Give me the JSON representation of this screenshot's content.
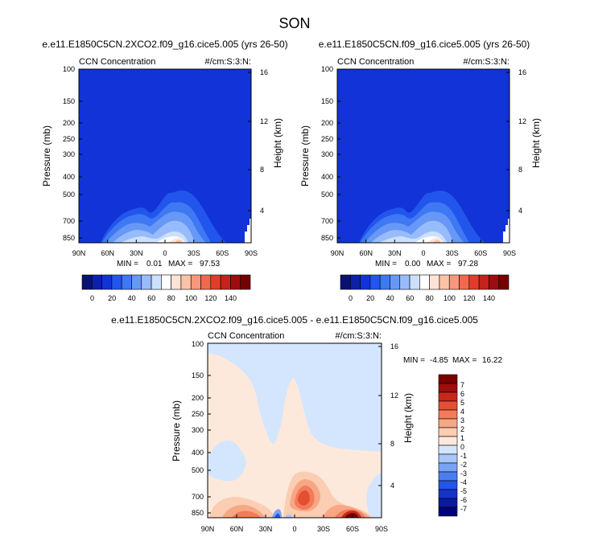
{
  "figure": {
    "title": "SON",
    "colors": {
      "abs_palette": [
        "#0a1270",
        "#0d21a8",
        "#1133d8",
        "#2255ec",
        "#3e78f2",
        "#6898f7",
        "#98bbfb",
        "#cce0fc",
        "#ffffff",
        "#fde3d6",
        "#fbc2a6",
        "#f6987a",
        "#ee6a4d",
        "#df3e2b",
        "#c4221a",
        "#9f0c0f",
        "#760000"
      ],
      "diff_palette": [
        "#00007a",
        "#0a1a9e",
        "#1433c8",
        "#2356e6",
        "#4a7ef0",
        "#7aa3f5",
        "#a7c6f9",
        "#d4e6fd",
        "#fde9dc",
        "#fbcdb2",
        "#f8a785",
        "#f27b59",
        "#e44e33",
        "#c7281c",
        "#a10c0d",
        "#7a0000"
      ]
    }
  },
  "chart_data": [
    {
      "type": "contour",
      "title": "e.e11.E1850C5CN.2XCO2.f09_g16.cice5.005 (yrs 26-50)",
      "subtitle_left": "CCN Concentration",
      "subtitle_right": "#/cm:S:3:N:",
      "ylabel": "Pressure (mb)",
      "ylabel_right": "Height (km)",
      "x_ticks": [
        "90N",
        "60N",
        "30N",
        "0",
        "30S",
        "60S",
        "90S"
      ],
      "y_ticks": [
        "100",
        "150",
        "200",
        "250",
        "300",
        "400",
        "500",
        "700",
        "850"
      ],
      "y_right_ticks": [
        "16",
        "12",
        "8",
        "4"
      ],
      "stats": {
        "min_label": "MIN =",
        "min": "0.01",
        "max_label": "MAX =",
        "max": "97.53"
      },
      "max_value": 97.53,
      "colorbar_ticks": [
        "0",
        "20",
        "40",
        "60",
        "80",
        "100",
        "120",
        "140"
      ]
    },
    {
      "type": "contour",
      "title": "e.e11.E1850C5CN.f09_g16.cice5.005 (yrs 26-50)",
      "subtitle_left": "CCN Concentration",
      "subtitle_right": "#/cm:S:3:N:",
      "ylabel": "Pressure (mb)",
      "ylabel_right": "Height (km)",
      "x_ticks": [
        "90N",
        "60N",
        "30N",
        "0",
        "30S",
        "60S",
        "90S"
      ],
      "y_ticks": [
        "100",
        "150",
        "200",
        "250",
        "300",
        "400",
        "500",
        "700",
        "850"
      ],
      "y_right_ticks": [
        "16",
        "12",
        "8",
        "4"
      ],
      "stats": {
        "min_label": "MIN =",
        "min": "0.00",
        "max_label": "MAX =",
        "max": "97.28"
      },
      "max_value": 97.28,
      "colorbar_ticks": [
        "0",
        "20",
        "40",
        "60",
        "80",
        "100",
        "120",
        "140"
      ]
    },
    {
      "type": "contour",
      "title": "e.e11.E1850C5CN.2XCO2.f09_g16.cice5.005 - e.e11.E1850C5CN.f09_g16.cice5.005",
      "subtitle_left": "CCN Concentration",
      "subtitle_right": "#/cm:S:3:N:",
      "ylabel": "Pressure (mb)",
      "ylabel_right": "Height (km)",
      "x_ticks": [
        "90N",
        "60N",
        "30N",
        "0",
        "30S",
        "60S",
        "90S"
      ],
      "y_ticks": [
        "100",
        "150",
        "200",
        "250",
        "300",
        "400",
        "500",
        "700",
        "850"
      ],
      "y_right_ticks": [
        "16",
        "12",
        "8",
        "4"
      ],
      "stats": {
        "min_label": "MIN =",
        "min": "-4.85",
        "max_label": "MAX =",
        "max": "16.22"
      },
      "colorbar_ticks": [
        "7",
        "6",
        "5",
        "4",
        "3",
        "2",
        "1",
        "0",
        "-1",
        "-2",
        "-3",
        "-4",
        "-5",
        "-6",
        "-7"
      ]
    }
  ]
}
